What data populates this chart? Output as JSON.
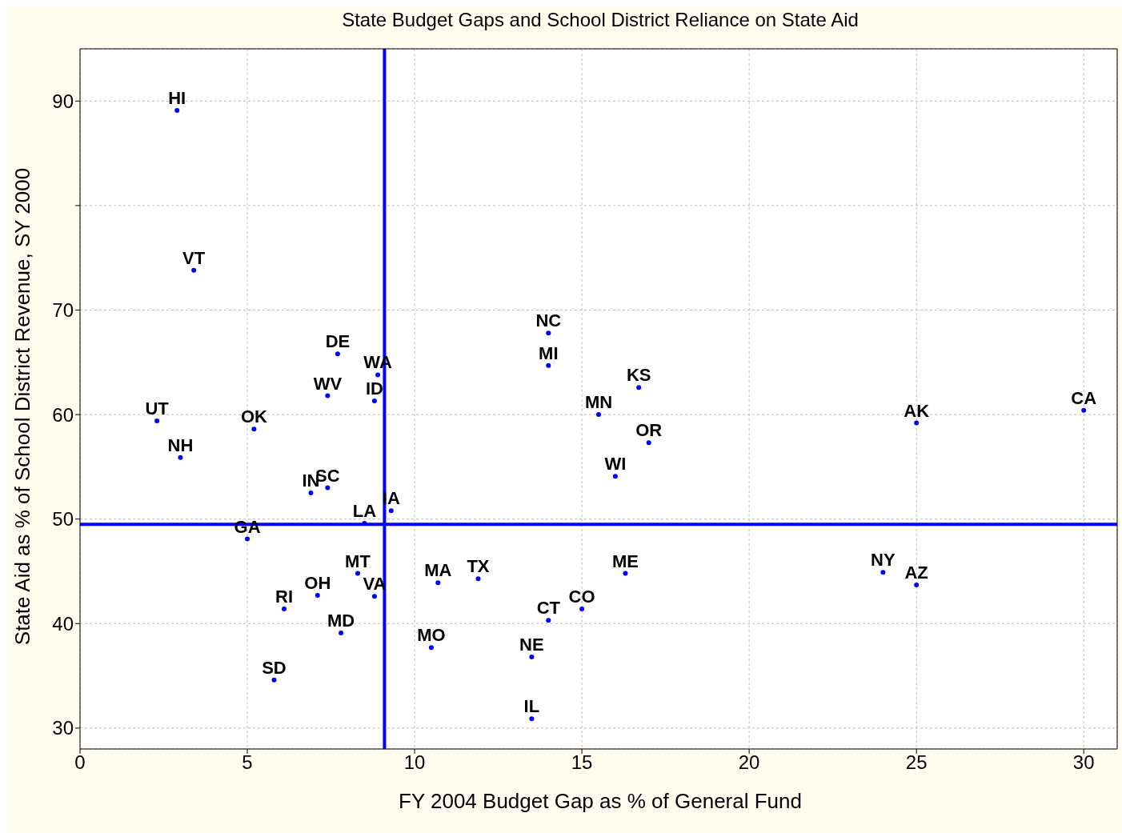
{
  "chart_data": {
    "type": "scatter",
    "title": "State Budget Gaps and School District Reliance on State Aid",
    "xlabel": "FY 2004 Budget Gap as % of General Fund",
    "ylabel": "State Aid as % of School District Revenue, SY 2000",
    "xlim": [
      0,
      31
    ],
    "xticks": [
      0,
      5,
      10,
      15,
      20,
      25,
      30
    ],
    "ylim": [
      28,
      95
    ],
    "yticks": [
      30,
      40,
      50,
      60,
      70,
      {
        "value": 80,
        "label": null
      },
      90
    ],
    "grid": true,
    "legend": false,
    "marker": "circle",
    "series": [
      {
        "color": "#0000ff",
        "x": [
          2.9,
          3.4,
          14.0,
          7.7,
          14.0,
          8.9,
          16.7,
          7.4,
          8.8,
          30.0,
          15.5,
          2.3,
          25.0,
          5.2,
          17.0,
          3.0,
          16.0,
          7.4,
          6.9,
          9.3,
          8.5,
          5.0,
          24.0,
          8.3,
          16.3,
          11.9,
          10.7,
          25.0,
          7.1,
          8.8,
          6.1,
          15.0,
          14.0,
          7.8,
          10.5,
          13.5,
          5.8,
          13.5
        ],
        "values": [
          89.1,
          73.8,
          67.8,
          65.8,
          64.7,
          63.8,
          62.6,
          61.8,
          61.3,
          60.4,
          60.0,
          59.4,
          59.2,
          58.6,
          57.3,
          55.9,
          54.1,
          53.0,
          52.5,
          50.8,
          49.6,
          48.1,
          44.9,
          44.8,
          44.8,
          44.3,
          43.9,
          43.7,
          42.7,
          42.6,
          41.4,
          41.4,
          40.3,
          39.1,
          37.7,
          36.8,
          34.6,
          30.9
        ]
      }
    ],
    "ref_lines": [
      {
        "axis": "x",
        "value": 9.1,
        "color": "#0000ff"
      },
      {
        "axis": "y",
        "value": 49.5,
        "color": "#0000ff"
      }
    ],
    "annotations": [
      {
        "text": "HI",
        "x": 2.9,
        "y": 89.1
      },
      {
        "text": "VT",
        "x": 3.4,
        "y": 73.8
      },
      {
        "text": "NC",
        "x": 14.0,
        "y": 67.8
      },
      {
        "text": "DE",
        "x": 7.7,
        "y": 65.8
      },
      {
        "text": "MI",
        "x": 14.0,
        "y": 64.7
      },
      {
        "text": "WA",
        "x": 8.9,
        "y": 63.8
      },
      {
        "text": "KS",
        "x": 16.7,
        "y": 62.6
      },
      {
        "text": "WV",
        "x": 7.4,
        "y": 61.8
      },
      {
        "text": "ID",
        "x": 8.8,
        "y": 61.3
      },
      {
        "text": "CA",
        "x": 30.0,
        "y": 60.4
      },
      {
        "text": "MN",
        "x": 15.5,
        "y": 60.0
      },
      {
        "text": "UT",
        "x": 2.3,
        "y": 59.4
      },
      {
        "text": "AK",
        "x": 25.0,
        "y": 59.2
      },
      {
        "text": "OK",
        "x": 5.2,
        "y": 58.6
      },
      {
        "text": "OR",
        "x": 17.0,
        "y": 57.3
      },
      {
        "text": "NH",
        "x": 3.0,
        "y": 55.9
      },
      {
        "text": "WI",
        "x": 16.0,
        "y": 54.1
      },
      {
        "text": "SC",
        "x": 7.4,
        "y": 53.0
      },
      {
        "text": "IN",
        "x": 6.9,
        "y": 52.5
      },
      {
        "text": "IA",
        "x": 9.3,
        "y": 50.8
      },
      {
        "text": "LA",
        "x": 8.5,
        "y": 49.6
      },
      {
        "text": "GA",
        "x": 5.0,
        "y": 48.1
      },
      {
        "text": "NY",
        "x": 24.0,
        "y": 44.9
      },
      {
        "text": "MT",
        "x": 8.3,
        "y": 44.8
      },
      {
        "text": "ME",
        "x": 16.3,
        "y": 44.8
      },
      {
        "text": "TX",
        "x": 11.9,
        "y": 44.3
      },
      {
        "text": "MA",
        "x": 10.7,
        "y": 43.9
      },
      {
        "text": "AZ",
        "x": 25.0,
        "y": 43.7
      },
      {
        "text": "OH",
        "x": 7.1,
        "y": 42.7
      },
      {
        "text": "VA",
        "x": 8.8,
        "y": 42.6
      },
      {
        "text": "RI",
        "x": 6.1,
        "y": 41.4
      },
      {
        "text": "CO",
        "x": 15.0,
        "y": 41.4
      },
      {
        "text": "CT",
        "x": 14.0,
        "y": 40.3
      },
      {
        "text": "MD",
        "x": 7.8,
        "y": 39.1
      },
      {
        "text": "MO",
        "x": 10.5,
        "y": 37.7
      },
      {
        "text": "NE",
        "x": 13.5,
        "y": 36.8
      },
      {
        "text": "SD",
        "x": 5.8,
        "y": 34.6
      },
      {
        "text": "IL",
        "x": 13.5,
        "y": 30.9
      }
    ]
  }
}
